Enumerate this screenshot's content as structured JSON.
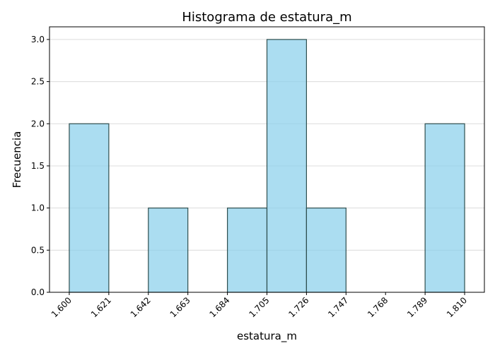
{
  "chart_data": {
    "type": "bar",
    "title": "Histograma de estatura_m",
    "xlabel": "estatura_m",
    "ylabel": "Frecuencia",
    "bin_edges": [
      1.6,
      1.621,
      1.642,
      1.663,
      1.684,
      1.705,
      1.726,
      1.747,
      1.768,
      1.789,
      1.81
    ],
    "x_tick_labels": [
      "1.600",
      "1.621",
      "1.642",
      "1.663",
      "1.684",
      "1.705",
      "1.726",
      "1.747",
      "1.768",
      "1.789",
      "1.810"
    ],
    "values": [
      2,
      0,
      1,
      0,
      1,
      3,
      1,
      0,
      0,
      2
    ],
    "y_ticks": [
      0.0,
      0.5,
      1.0,
      1.5,
      2.0,
      2.5,
      3.0
    ],
    "y_tick_labels": [
      "0.0",
      "0.5",
      "1.0",
      "1.5",
      "2.0",
      "2.5",
      "3.0"
    ],
    "xlim": [
      1.5895,
      1.8205
    ],
    "ylim": [
      0,
      3.15
    ],
    "grid": "y",
    "bar_color": "#87ceeb",
    "bar_edge_color": "#2f4f4f"
  }
}
